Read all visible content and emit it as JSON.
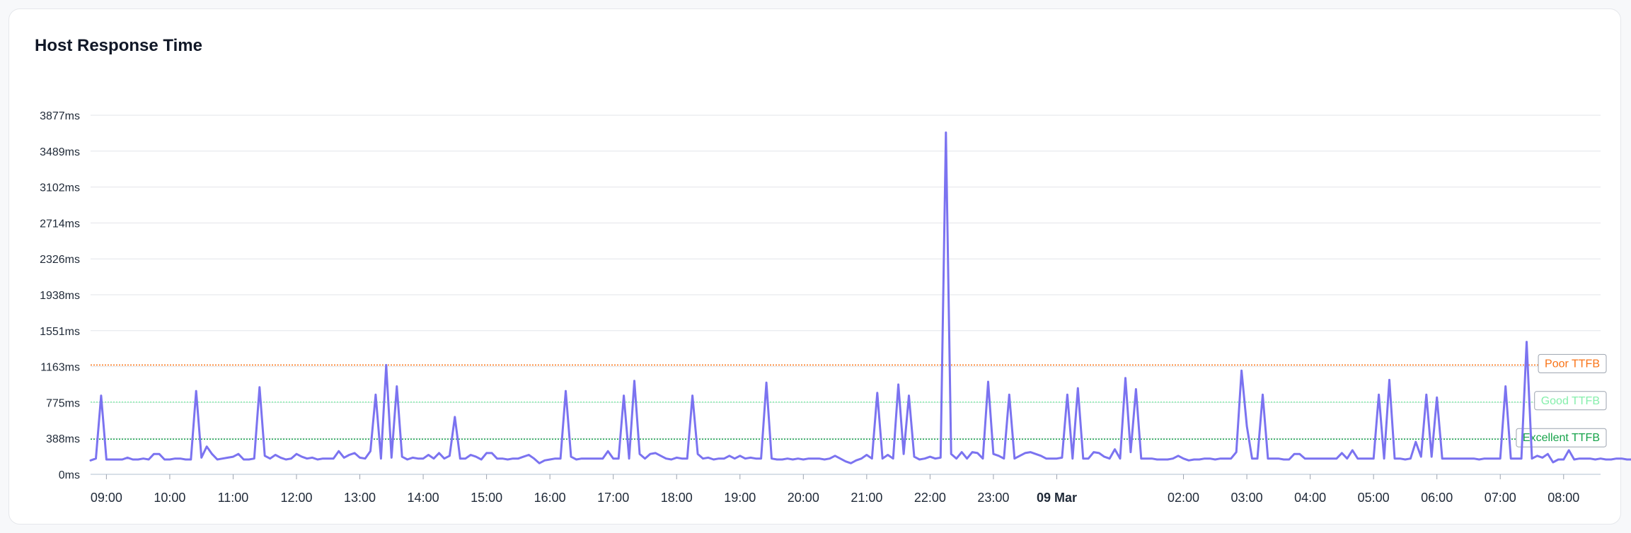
{
  "card": {
    "title": "Host Response Time"
  },
  "chart_data": {
    "type": "line",
    "title": "Host Response Time",
    "xlabel": "",
    "ylabel": "",
    "unit": "ms",
    "ylim": [
      0,
      3877
    ],
    "y_ticks": [
      "0ms",
      "388ms",
      "775ms",
      "1163ms",
      "1551ms",
      "1938ms",
      "2326ms",
      "2714ms",
      "3102ms",
      "3489ms",
      "3877ms"
    ],
    "x_range": [
      "08:45",
      "32:35"
    ],
    "x_ticks": [
      {
        "time": "09:00",
        "label": "09:00",
        "bold": false
      },
      {
        "time": "10:00",
        "label": "10:00",
        "bold": false
      },
      {
        "time": "11:00",
        "label": "11:00",
        "bold": false
      },
      {
        "time": "12:00",
        "label": "12:00",
        "bold": false
      },
      {
        "time": "13:00",
        "label": "13:00",
        "bold": false
      },
      {
        "time": "14:00",
        "label": "14:00",
        "bold": false
      },
      {
        "time": "15:00",
        "label": "15:00",
        "bold": false
      },
      {
        "time": "16:00",
        "label": "16:00",
        "bold": false
      },
      {
        "time": "17:00",
        "label": "17:00",
        "bold": false
      },
      {
        "time": "18:00",
        "label": "18:00",
        "bold": false
      },
      {
        "time": "19:00",
        "label": "19:00",
        "bold": false
      },
      {
        "time": "20:00",
        "label": "20:00",
        "bold": false
      },
      {
        "time": "21:00",
        "label": "21:00",
        "bold": false
      },
      {
        "time": "22:00",
        "label": "22:00",
        "bold": false
      },
      {
        "time": "23:00",
        "label": "23:00",
        "bold": false
      },
      {
        "time": "24:00",
        "label": "09 Mar",
        "bold": true
      },
      {
        "time": "26:00",
        "label": "02:00",
        "bold": false
      },
      {
        "time": "27:00",
        "label": "03:00",
        "bold": false
      },
      {
        "time": "28:00",
        "label": "04:00",
        "bold": false
      },
      {
        "time": "29:00",
        "label": "05:00",
        "bold": false
      },
      {
        "time": "30:00",
        "label": "06:00",
        "bold": false
      },
      {
        "time": "31:00",
        "label": "07:00",
        "bold": false
      },
      {
        "time": "32:00",
        "label": "08:00",
        "bold": false
      }
    ],
    "reference_lines": [
      {
        "label": "Poor TTFB",
        "value": 1180,
        "color": "#f97316"
      },
      {
        "label": "Good TTFB",
        "value": 780,
        "color": "#86efac"
      },
      {
        "label": "Excellent TTFB",
        "value": 380,
        "color": "#16a34a"
      }
    ],
    "series": [
      {
        "color": "#7b73f0",
        "interval_minutes": 5,
        "start": "08:45",
        "values": [
          150,
          170,
          850,
          160,
          160,
          160,
          160,
          180,
          160,
          160,
          170,
          160,
          220,
          220,
          160,
          160,
          170,
          170,
          160,
          160,
          900,
          180,
          300,
          220,
          160,
          170,
          180,
          190,
          220,
          160,
          160,
          170,
          940,
          200,
          170,
          210,
          180,
          160,
          170,
          220,
          190,
          170,
          180,
          160,
          170,
          170,
          170,
          250,
          180,
          210,
          230,
          180,
          170,
          250,
          860,
          170,
          1180,
          180,
          950,
          190,
          160,
          180,
          170,
          170,
          210,
          170,
          230,
          170,
          200,
          620,
          170,
          170,
          210,
          190,
          160,
          230,
          230,
          170,
          170,
          160,
          170,
          170,
          190,
          210,
          170,
          120,
          150,
          160,
          170,
          170,
          900,
          190,
          160,
          170,
          170,
          170,
          170,
          170,
          250,
          170,
          170,
          850,
          170,
          1010,
          220,
          170,
          220,
          230,
          200,
          170,
          160,
          180,
          170,
          170,
          850,
          220,
          170,
          180,
          160,
          170,
          170,
          200,
          170,
          200,
          170,
          180,
          170,
          170,
          990,
          170,
          160,
          160,
          170,
          160,
          170,
          160,
          170,
          170,
          170,
          160,
          170,
          200,
          170,
          140,
          120,
          150,
          170,
          210,
          170,
          880,
          170,
          210,
          170,
          970,
          220,
          850,
          190,
          160,
          170,
          190,
          170,
          180,
          3690,
          220,
          170,
          240,
          170,
          240,
          230,
          170,
          1000,
          220,
          200,
          170,
          860,
          170,
          200,
          230,
          240,
          220,
          200,
          170,
          170,
          170,
          180,
          860,
          170,
          930,
          170,
          170,
          240,
          230,
          190,
          170,
          270,
          170,
          1040,
          240,
          920,
          170,
          170,
          170,
          160,
          160,
          160,
          170,
          200,
          170,
          150,
          160,
          160,
          170,
          170,
          160,
          170,
          170,
          170,
          240,
          1120,
          520,
          170,
          170,
          860,
          170,
          170,
          170,
          160,
          160,
          220,
          220,
          170,
          170,
          170,
          170,
          170,
          170,
          170,
          230,
          170,
          260,
          170,
          170,
          170,
          170,
          860,
          170,
          1020,
          170,
          170,
          160,
          170,
          350,
          190,
          860,
          190,
          830,
          170,
          170,
          170,
          170,
          170,
          170,
          170,
          160,
          170,
          170,
          170,
          170,
          950,
          170,
          170,
          170,
          1430,
          170,
          200,
          180,
          220,
          130,
          160,
          160,
          260,
          160,
          170,
          170,
          170,
          160,
          170,
          160,
          160,
          170,
          170,
          160,
          160,
          170,
          170,
          170,
          170
        ]
      }
    ],
    "grid": true,
    "legend": "none"
  }
}
